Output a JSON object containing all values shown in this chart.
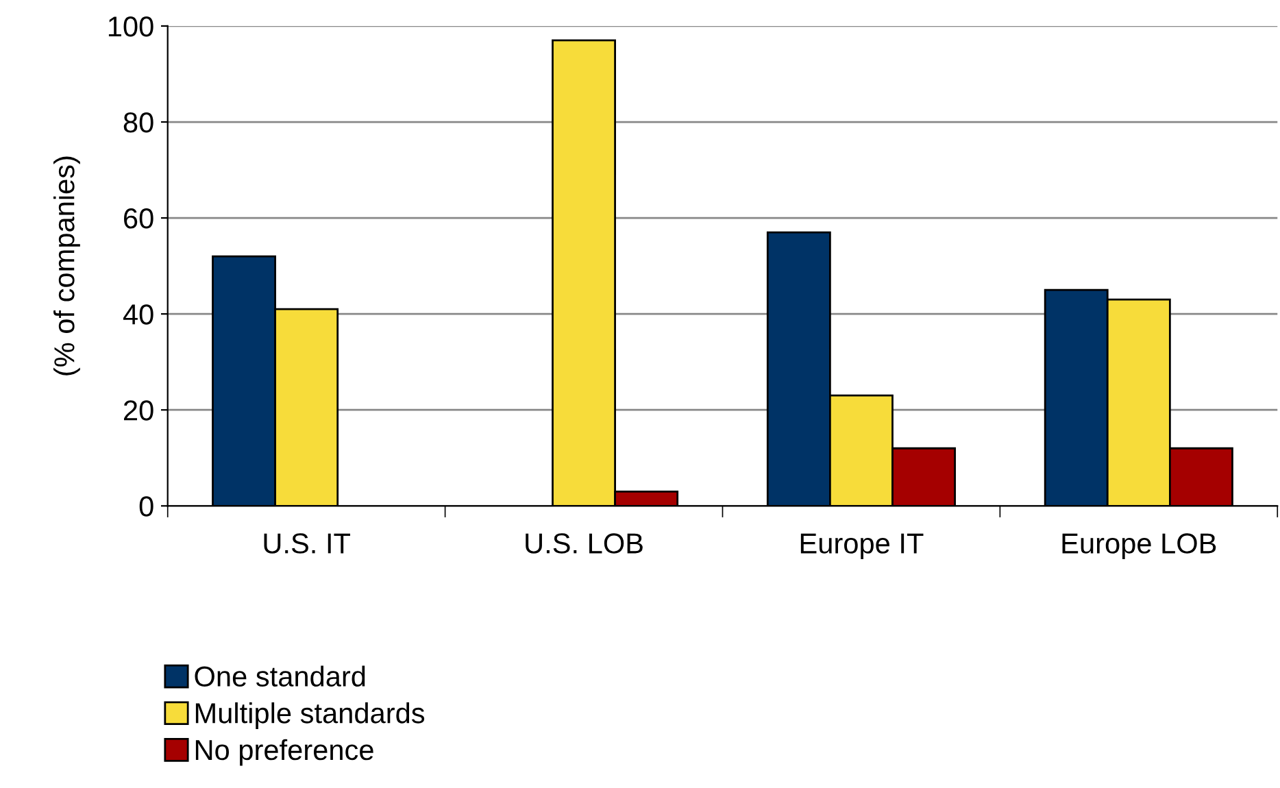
{
  "chart_data": {
    "type": "bar",
    "ylabel": "(% of companies)",
    "categories": [
      "U.S. IT",
      "U.S. LOB",
      "Europe IT",
      "Europe LOB"
    ],
    "series": [
      {
        "name": "One standard",
        "color": "#003366",
        "values": [
          52,
          null,
          57,
          45
        ]
      },
      {
        "name": "Multiple standards",
        "color": "#f7dc3a",
        "values": [
          41,
          97,
          23,
          43
        ]
      },
      {
        "name": "No preference",
        "color": "#a50000",
        "values": [
          null,
          3,
          12,
          12
        ]
      }
    ],
    "ylim": [
      0,
      100
    ],
    "yticks": [
      0,
      20,
      40,
      60,
      80,
      100
    ],
    "grid": "y",
    "legend": "bottom left"
  }
}
